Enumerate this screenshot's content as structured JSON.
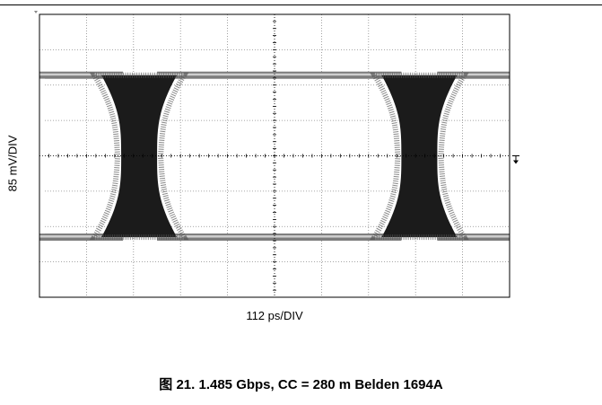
{
  "chart_data": {
    "type": "scatter",
    "subtype": "eye-diagram",
    "xlabel": "112 ps/DIV",
    "ylabel": "85 mV/DIV",
    "x_divisions": 10,
    "y_divisions": 8,
    "grid": true,
    "trigger_marker": "right-center",
    "caption": "图 21. 1.485 Gbps, CC = 280 m Belden 1694A"
  }
}
